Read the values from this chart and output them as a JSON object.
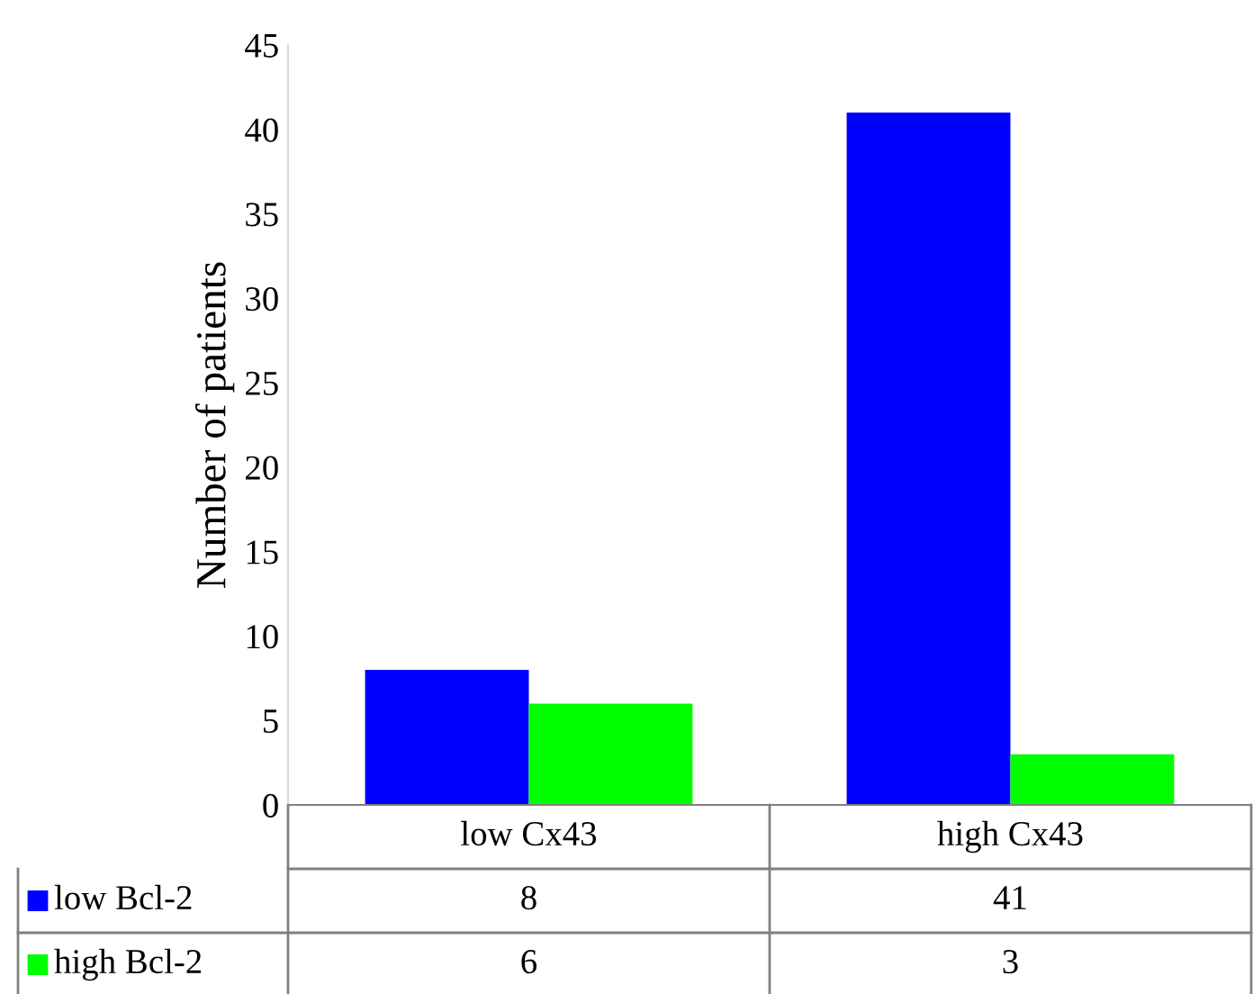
{
  "chart_data": {
    "type": "bar",
    "ylabel": "Number of patients",
    "categories": [
      "low Cx43",
      "high Cx43"
    ],
    "series": [
      {
        "name": "low Bcl-2",
        "color": "#0000ff",
        "values": [
          8,
          41
        ]
      },
      {
        "name": "high Bcl-2",
        "color": "#00ff00",
        "values": [
          6,
          3
        ]
      }
    ],
    "ylim": [
      0,
      45
    ],
    "yticks": [
      0,
      5,
      10,
      15,
      20,
      25,
      30,
      35,
      40,
      45
    ],
    "grid": false,
    "legend": "bottom",
    "data_labels": true
  }
}
